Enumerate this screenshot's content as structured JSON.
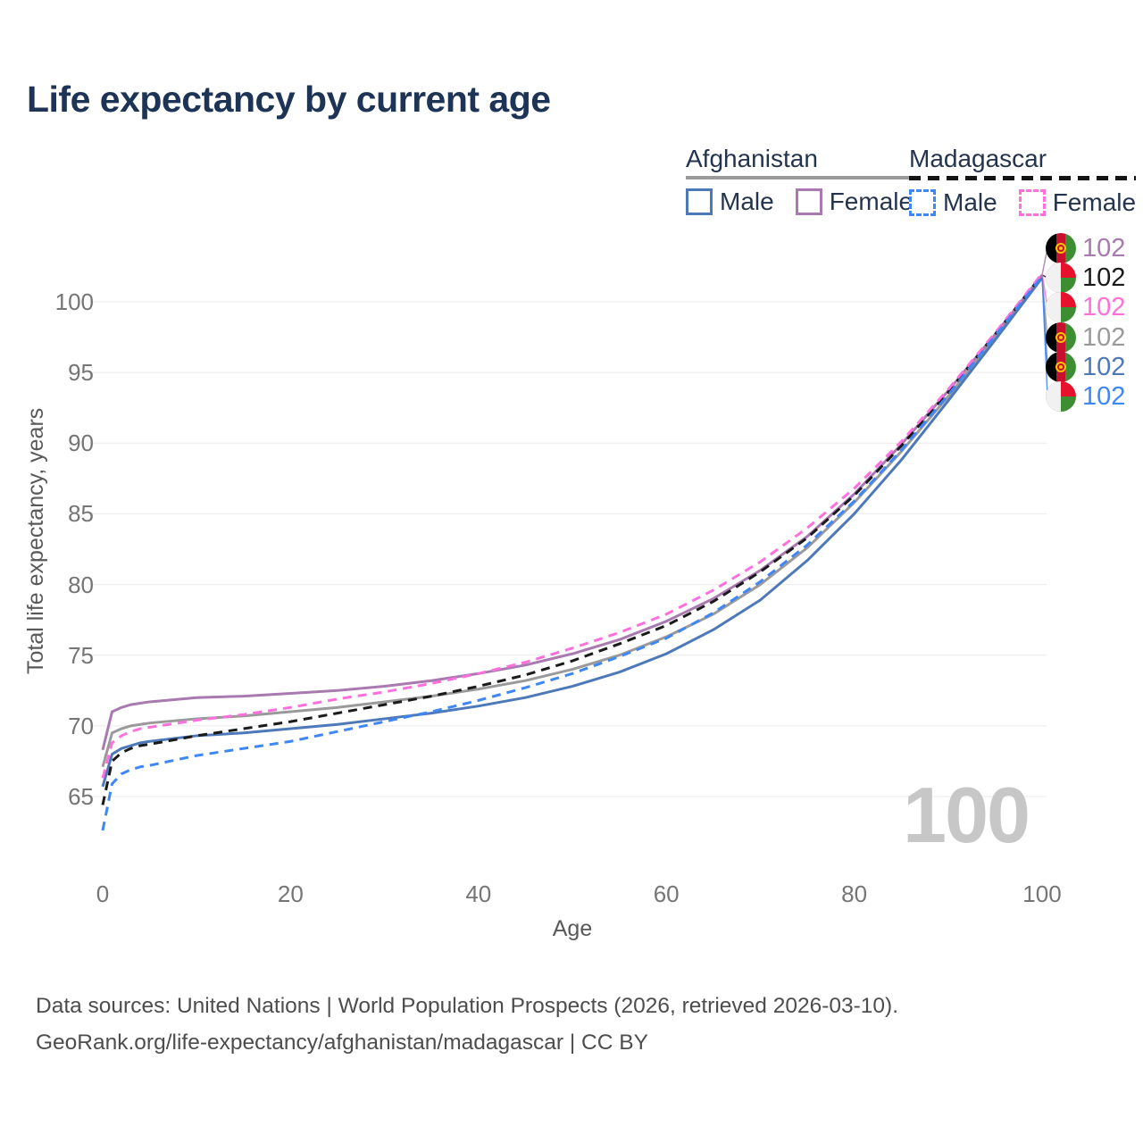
{
  "title": "Life expectancy by current age",
  "legend": {
    "groups": [
      {
        "country": "Afghanistan",
        "line_style": "solid",
        "underline_color": "#9a9a9a",
        "items": [
          {
            "label": "Male",
            "color": "#4e79b8",
            "dashed": false
          },
          {
            "label": "Female",
            "color": "#a87ab0",
            "dashed": false
          }
        ]
      },
      {
        "country": "Madagascar",
        "line_style": "dashed",
        "underline_color": "#141414",
        "items": [
          {
            "label": "Male",
            "color": "#3f87f5",
            "dashed": true
          },
          {
            "label": "Female",
            "color": "#ff70dd",
            "dashed": true
          }
        ]
      }
    ]
  },
  "chart_data": {
    "type": "line",
    "title": "Life expectancy by current age",
    "xlabel": "Age",
    "ylabel": "Total life expectancy, years",
    "xlim": [
      0,
      100
    ],
    "ylim": [
      62,
      103.5
    ],
    "xticks": [
      0,
      20,
      40,
      60,
      80,
      100
    ],
    "yticks": [
      65,
      70,
      75,
      80,
      85,
      90,
      95,
      100
    ],
    "grid": "horizontal",
    "watermark": "100",
    "x": [
      0,
      1,
      2,
      3,
      4,
      5,
      10,
      15,
      20,
      25,
      30,
      35,
      40,
      45,
      50,
      55,
      60,
      65,
      70,
      75,
      80,
      85,
      90,
      95,
      100
    ],
    "series": [
      {
        "name": "Afghanistan Female",
        "country": "Afghanistan",
        "sex": "Female",
        "color": "#a87ab0",
        "dash": false,
        "end_label": "102",
        "values": [
          68.3,
          71.0,
          71.3,
          71.5,
          71.6,
          71.7,
          72.0,
          72.1,
          72.3,
          72.5,
          72.8,
          73.2,
          73.7,
          74.3,
          75.1,
          76.1,
          77.4,
          79.0,
          81.0,
          83.4,
          86.4,
          89.9,
          93.7,
          97.7,
          101.9
        ]
      },
      {
        "name": "Madagascar Both sexes",
        "country": "Madagascar",
        "sex": "Both",
        "color": "#1a1a1a",
        "dash": true,
        "end_label": "102",
        "values": [
          64.4,
          67.5,
          68.1,
          68.4,
          68.6,
          68.7,
          69.3,
          69.8,
          70.3,
          70.9,
          71.5,
          72.1,
          72.8,
          73.6,
          74.6,
          75.8,
          77.1,
          78.8,
          80.9,
          83.3,
          86.3,
          89.8,
          93.6,
          97.7,
          101.9
        ]
      },
      {
        "name": "Madagascar Female",
        "country": "Madagascar",
        "sex": "Female",
        "color": "#ff70dd",
        "dash": true,
        "end_label": "102",
        "values": [
          66.3,
          68.8,
          69.3,
          69.6,
          69.8,
          69.9,
          70.4,
          70.8,
          71.3,
          71.9,
          72.4,
          73.0,
          73.7,
          74.5,
          75.5,
          76.6,
          77.9,
          79.6,
          81.6,
          84.0,
          86.8,
          90.1,
          93.8,
          97.8,
          102.0
        ]
      },
      {
        "name": "Afghanistan Both sexes",
        "country": "Afghanistan",
        "sex": "Both",
        "color": "#9a9a9a",
        "dash": false,
        "end_label": "102",
        "values": [
          67.1,
          69.5,
          69.8,
          70.0,
          70.1,
          70.2,
          70.5,
          70.7,
          71.0,
          71.3,
          71.7,
          72.1,
          72.6,
          73.2,
          74.0,
          75.0,
          76.3,
          77.9,
          80.0,
          82.6,
          85.8,
          89.4,
          93.3,
          97.5,
          101.8
        ]
      },
      {
        "name": "Afghanistan Male",
        "country": "Afghanistan",
        "sex": "Male",
        "color": "#4e79b8",
        "dash": false,
        "end_label": "102",
        "values": [
          65.7,
          68.0,
          68.4,
          68.6,
          68.8,
          68.9,
          69.3,
          69.5,
          69.8,
          70.1,
          70.5,
          70.9,
          71.4,
          72.0,
          72.8,
          73.8,
          75.1,
          76.8,
          78.9,
          81.7,
          85.0,
          88.8,
          93.0,
          97.3,
          101.7
        ]
      },
      {
        "name": "Madagascar Male",
        "country": "Madagascar",
        "sex": "Male",
        "color": "#3f87f5",
        "dash": true,
        "end_label": "102",
        "values": [
          62.6,
          65.9,
          66.6,
          66.9,
          67.1,
          67.2,
          67.9,
          68.4,
          68.9,
          69.6,
          70.3,
          71.0,
          71.8,
          72.7,
          73.7,
          74.9,
          76.2,
          78.0,
          80.2,
          82.8,
          85.9,
          89.5,
          93.4,
          97.6,
          101.8
        ]
      }
    ]
  },
  "footer": {
    "line1": "Data sources: United Nations | World Population Prospects (2026, retrieved 2026-03-10).",
    "line2": "GeoRank.org/life-expectancy/afghanistan/madagascar | CC BY"
  }
}
